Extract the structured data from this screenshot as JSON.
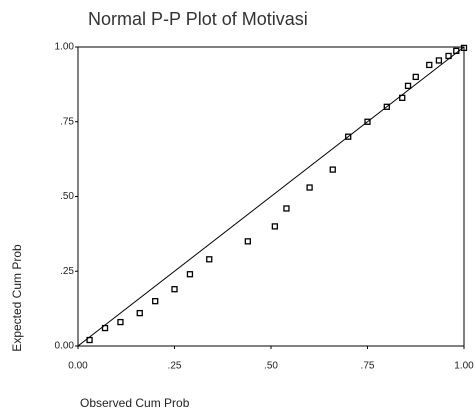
{
  "chart_data": {
    "type": "scatter",
    "title": "Normal P-P Plot of Motivasi",
    "x_label": "Observed Cum Prob",
    "y_label": "Expected Cum Prob",
    "x": [
      0.03,
      0.07,
      0.11,
      0.16,
      0.2,
      0.25,
      0.29,
      0.34,
      0.44,
      0.51,
      0.54,
      0.6,
      0.66,
      0.7,
      0.75,
      0.8,
      0.84,
      0.855,
      0.875,
      0.91,
      0.935,
      0.96,
      0.98,
      1.0
    ],
    "values": [
      0.02,
      0.06,
      0.08,
      0.11,
      0.15,
      0.19,
      0.24,
      0.29,
      0.35,
      0.4,
      0.46,
      0.53,
      0.59,
      0.7,
      0.75,
      0.8,
      0.83,
      0.87,
      0.9,
      0.94,
      0.955,
      0.97,
      0.987,
      0.997
    ],
    "color": "#000000",
    "xlim": [
      0,
      1
    ],
    "ylim": [
      0,
      1
    ],
    "xticks": [
      {
        "value": 0,
        "label": "0.00"
      },
      {
        "value": 0.25,
        "label": ".25"
      },
      {
        "value": 0.5,
        "label": ".50"
      },
      {
        "value": 0.75,
        "label": ".75"
      },
      {
        "value": 1,
        "label": "1.00"
      }
    ],
    "yticks": [
      {
        "value": 0,
        "label": "0.00"
      },
      {
        "value": 0.25,
        "label": ".25"
      },
      {
        "value": 0.5,
        "label": ".50"
      },
      {
        "value": 0.75,
        "label": ".75"
      },
      {
        "value": 1,
        "label": "1.00"
      }
    ],
    "grid": false
  }
}
